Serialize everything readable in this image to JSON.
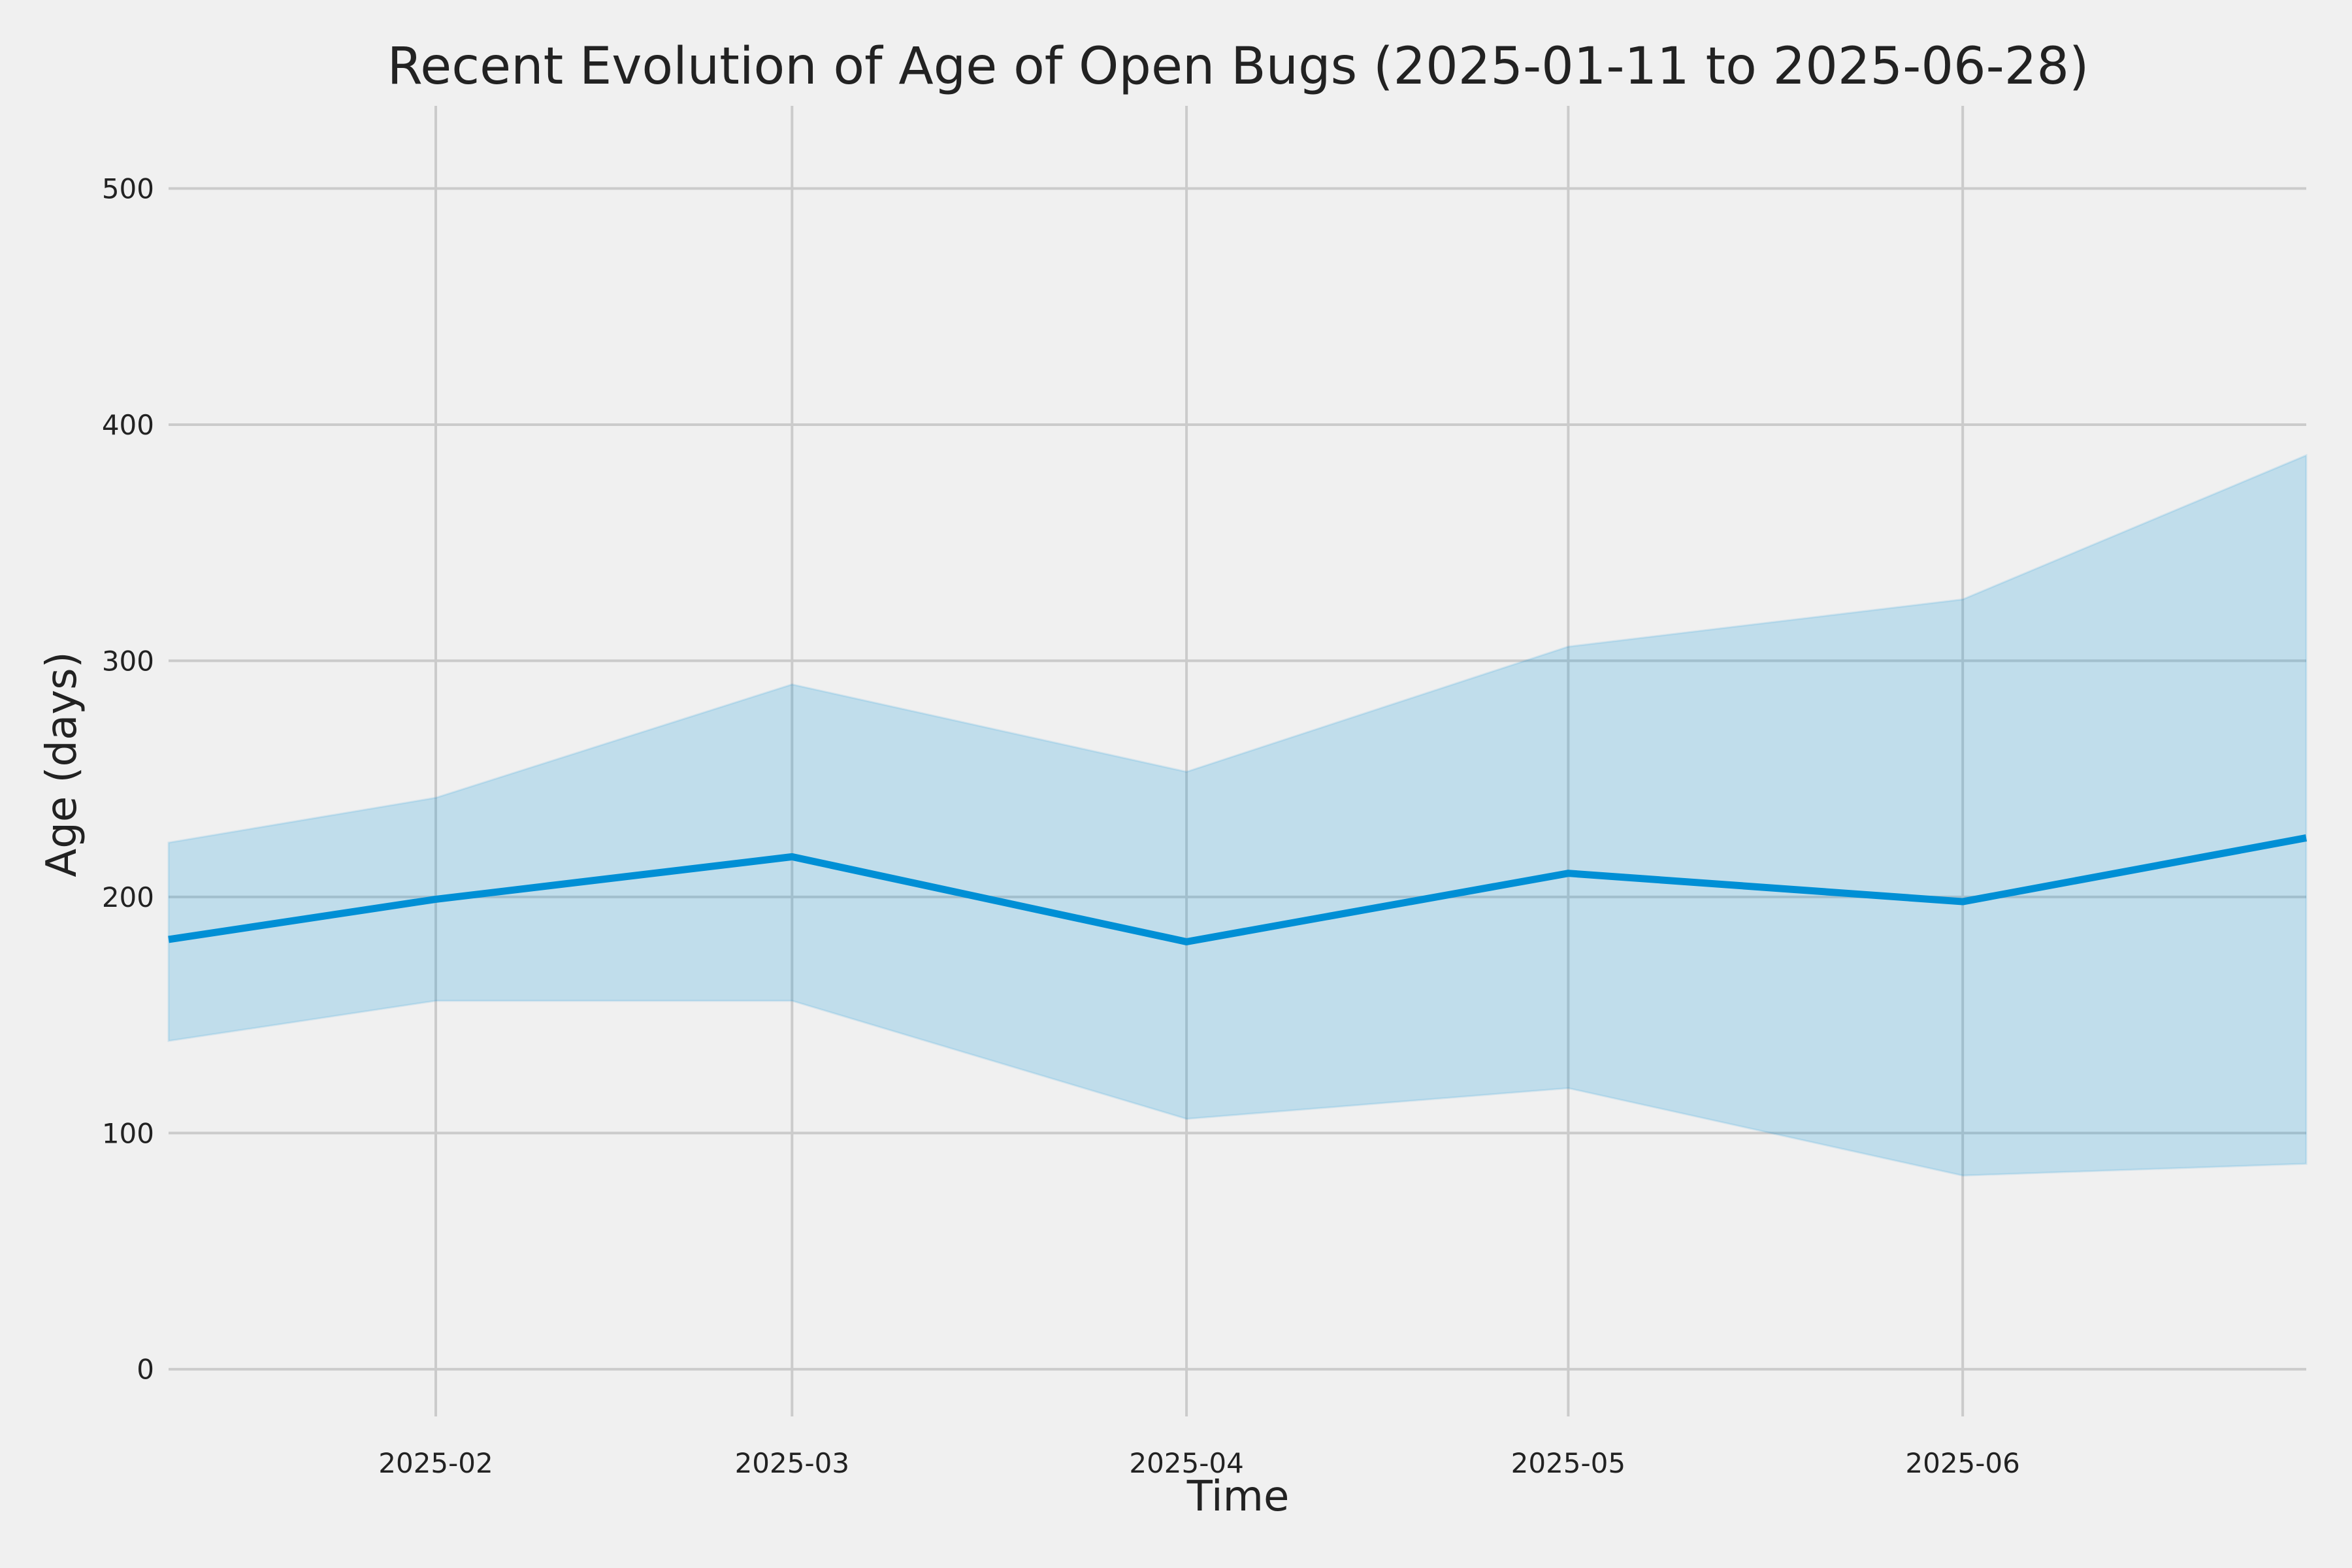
{
  "chart_data": {
    "type": "area",
    "title": "Recent Evolution of Age of Open Bugs (2025-01-11 to 2025-06-28)",
    "xlabel": "Time",
    "ylabel": "Age (days)",
    "x": [
      "2025-01-11",
      "2025-02-01",
      "2025-03-01",
      "2025-04-01",
      "2025-05-01",
      "2025-06-01",
      "2025-06-28"
    ],
    "xlim": [
      "2025-01-11",
      "2025-06-28"
    ],
    "ylim": [
      -20,
      535
    ],
    "x_ticks": [
      "2025-02",
      "2025-03",
      "2025-04",
      "2025-05",
      "2025-06"
    ],
    "y_ticks": [
      0,
      100,
      200,
      300,
      400,
      500
    ],
    "grid": true,
    "series": [
      {
        "values": [
          182,
          199,
          217,
          181,
          210,
          198,
          225
        ],
        "color": "#008fd5"
      }
    ],
    "band": {
      "upper": [
        223,
        242,
        290,
        253,
        306,
        326,
        387
      ],
      "lower": [
        139,
        156,
        156,
        106,
        119,
        82,
        87
      ],
      "color": "#008fd5",
      "opacity": 0.2
    }
  }
}
